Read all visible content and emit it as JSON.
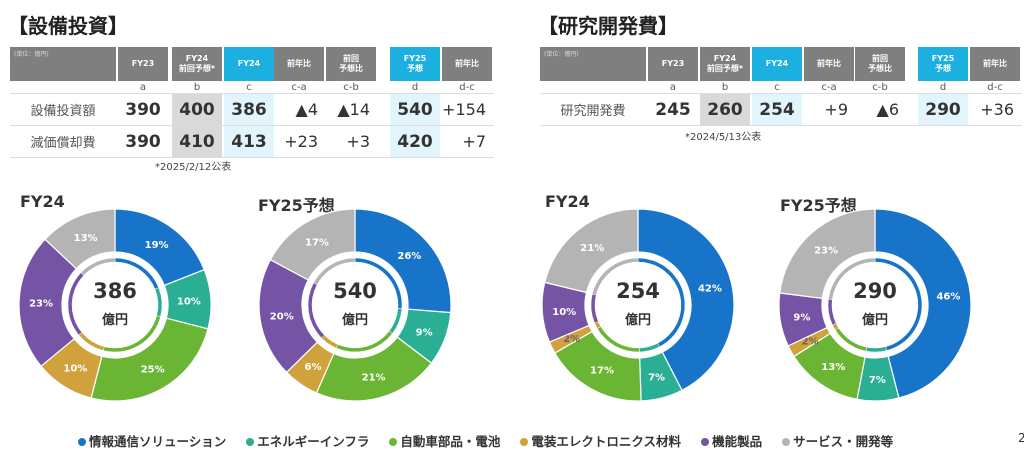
{
  "capex": {
    "title": "【設備投資】",
    "unit": "(単位：億円)",
    "headers": [
      "FY23",
      "FY24\n前回予想*",
      "FY24",
      "前年比",
      "前回\n予想比",
      "FY25\n予想",
      "前年比"
    ],
    "letters": [
      "a",
      "b",
      "c",
      "c-a",
      "c-b",
      "d",
      "d-c"
    ],
    "rows": [
      {
        "label": "設備投資額",
        "values": [
          "390",
          "400",
          "386",
          "▲4",
          "▲14",
          "540",
          "+154"
        ]
      },
      {
        "label": "減価償却費",
        "values": [
          "390",
          "410",
          "413",
          "+23",
          "+3",
          "420",
          "+7"
        ]
      }
    ],
    "note": "*2025/2/12公表"
  },
  "rnd": {
    "title": "【研究開発費】",
    "unit": "(単位：億円)",
    "headers": [
      "FY23",
      "FY24\n前回予想*",
      "FY24",
      "前年比",
      "前回\n予想比",
      "FY25\n予想",
      "前年比"
    ],
    "letters": [
      "a",
      "b",
      "c",
      "c-a",
      "c-b",
      "d",
      "d-c"
    ],
    "rows": [
      {
        "label": "研究開発費",
        "values": [
          "245",
          "260",
          "254",
          "+9",
          "▲6",
          "290",
          "+36"
        ]
      }
    ],
    "note": "*2024/5/13公表"
  },
  "colors": {
    "header_gray": "#7f7f7f",
    "header_cyan": "#1bb0e0",
    "series": [
      "#1874c8",
      "#2aae94",
      "#6bb534",
      "#d1a13c",
      "#7553a5",
      "#b4b4b4"
    ]
  },
  "legend": [
    "情報通信ソリューション",
    "エネルギーインフラ",
    "自動車部品・電池",
    "電装エレクトロニクス材料",
    "機能製品",
    "サービス・開発等"
  ],
  "page_fragment": "2",
  "chart_data": [
    {
      "type": "pie",
      "title": "FY24",
      "center_value": "386",
      "center_unit": "億円",
      "categories": [
        "情報通信ソリューション",
        "エネルギーインフラ",
        "自動車部品・電池",
        "電装エレクトロニクス材料",
        "機能製品",
        "サービス・開発等"
      ],
      "values": [
        19,
        10,
        25,
        10,
        23,
        13
      ]
    },
    {
      "type": "pie",
      "title": "FY25予想",
      "center_value": "540",
      "center_unit": "億円",
      "categories": [
        "情報通信ソリューション",
        "エネルギーインフラ",
        "自動車部品・電池",
        "電装エレクトロニクス材料",
        "機能製品",
        "サービス・開発等"
      ],
      "values": [
        26,
        9,
        21,
        6,
        20,
        17
      ]
    },
    {
      "type": "pie",
      "title": "FY24",
      "center_value": "254",
      "center_unit": "億円",
      "categories": [
        "情報通信ソリューション",
        "エネルギーインフラ",
        "自動車部品・電池",
        "電装エレクトロニクス材料",
        "機能製品",
        "サービス・開発等"
      ],
      "values": [
        42,
        7,
        17,
        2,
        10,
        21
      ]
    },
    {
      "type": "pie",
      "title": "FY25予想",
      "center_value": "290",
      "center_unit": "億円",
      "categories": [
        "情報通信ソリューション",
        "エネルギーインフラ",
        "自動車部品・電池",
        "電装エレクトロニクス材料",
        "機能製品",
        "サービス・開発等"
      ],
      "values": [
        46,
        7,
        13,
        2,
        9,
        23
      ]
    }
  ]
}
